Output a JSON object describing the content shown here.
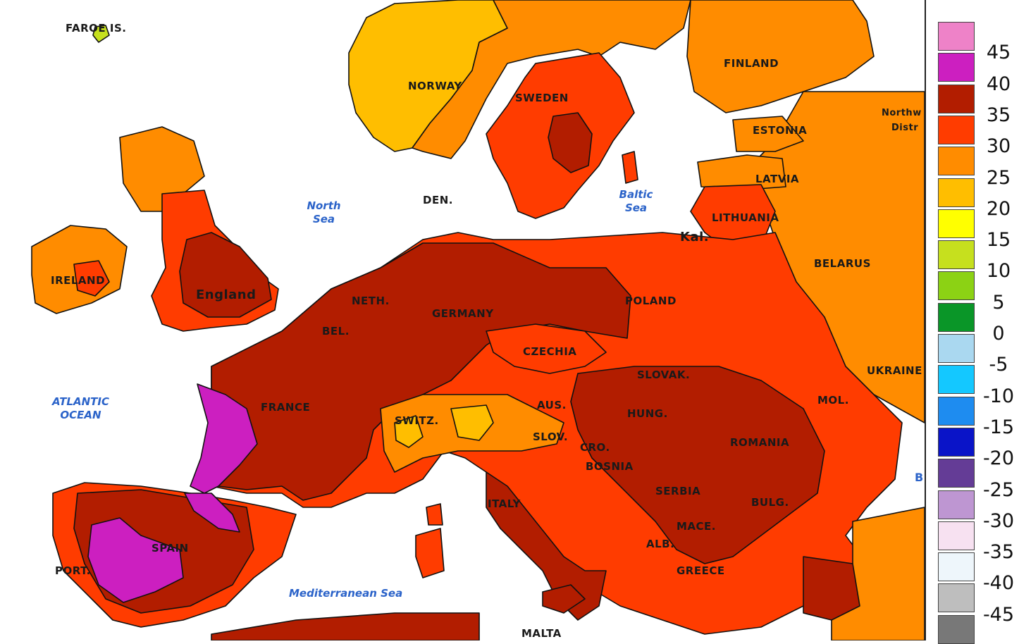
{
  "map": {
    "countries": [
      "FAROE IS.",
      "NORWAY",
      "SWEDEN",
      "FINLAND",
      "ESTONIA",
      "LATVIA",
      "LITHUANIA",
      "Kal.",
      "BELARUS",
      "DEN.",
      "IRELAND",
      "England",
      "NETH.",
      "BEL.",
      "GERMANY",
      "POLAND",
      "CZECHIA",
      "SLOVAK.",
      "UKRAINE",
      "MOL.",
      "FRANCE",
      "SWITZ.",
      "AUS.",
      "SLOV.",
      "HUNG.",
      "ROMANIA",
      "CRO.",
      "BOSNIA",
      "SERBIA",
      "BULG.",
      "MACE.",
      "ALB.",
      "GREECE",
      "ITALY",
      "SPAIN",
      "PORT.",
      "MALTA",
      "Northw",
      "Distr",
      "B"
    ],
    "seas": [
      "North\nSea",
      "Baltic\nSea",
      "ATLANTIC\nOCEAN",
      "Mediterranean Sea"
    ]
  },
  "legend": {
    "ticks": [
      "45",
      "40",
      "35",
      "30",
      "25",
      "20",
      "15",
      "10",
      "5",
      "0",
      "-5",
      "-10",
      "-15",
      "-20",
      "-25",
      "-30",
      "-35",
      "-40",
      "-45"
    ],
    "colors": [
      "#ee82c8",
      "#cc1fc0",
      "#b21d00",
      "#ff3c00",
      "#ff8c00",
      "#ffbe00",
      "#ffff00",
      "#c6e01e",
      "#8cd214",
      "#0a9628",
      "#aad8f0",
      "#14c8ff",
      "#1e8cf0",
      "#0a14c8",
      "#643c96",
      "#be96d2",
      "#f7e1f1",
      "#eef6fb",
      "#bebebe",
      "#787878"
    ]
  }
}
